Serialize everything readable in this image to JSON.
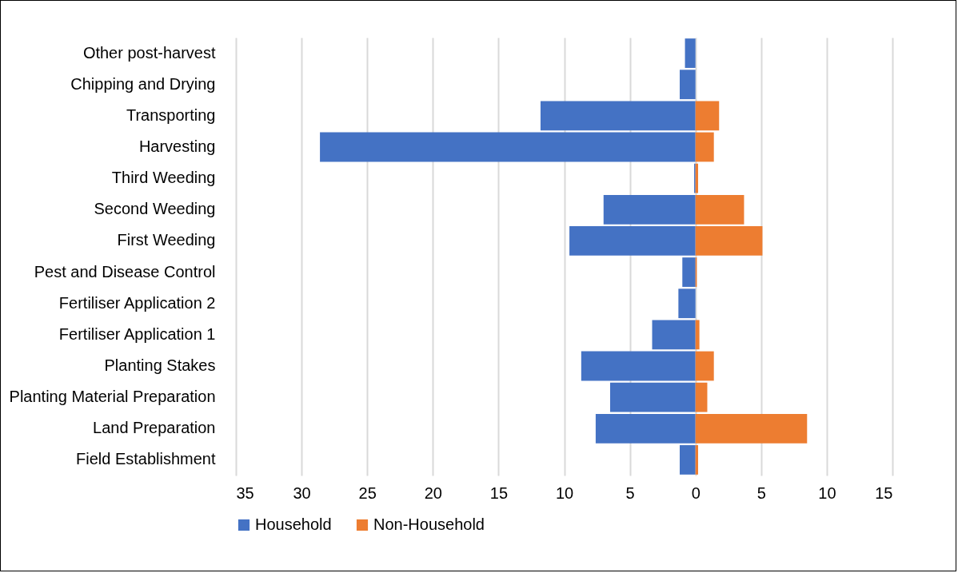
{
  "chart_data": {
    "type": "bar",
    "orientation": "horizontal",
    "categories": [
      "Other post-harvest",
      "Chipping and Drying",
      "Transporting",
      "Harvesting",
      "Third Weeding",
      "Second Weeding",
      "First Weeding",
      "Pest and Disease Control",
      "Fertiliser Application 2",
      "Fertiliser Application 1",
      "Planting Stakes",
      "Planting Material Preparation",
      "Land Preparation",
      "Field Establishment"
    ],
    "series": [
      {
        "name": "Household",
        "color": "#4472c4",
        "values": [
          -0.8,
          -1.2,
          -11.8,
          -28.6,
          -0.1,
          -7.0,
          -9.6,
          -1.0,
          -1.3,
          -3.3,
          -8.7,
          -6.5,
          -7.6,
          -1.2
        ]
      },
      {
        "name": "Non-Household",
        "color": "#ed7d31",
        "values": [
          null,
          null,
          1.8,
          1.4,
          0.2,
          3.7,
          5.1,
          0.1,
          null,
          0.3,
          1.4,
          0.9,
          8.5,
          0.2
        ]
      }
    ],
    "xlim": [
      -35,
      15
    ],
    "xticks": [
      {
        "value": -35,
        "label": "35"
      },
      {
        "value": -30,
        "label": "30"
      },
      {
        "value": -25,
        "label": "25"
      },
      {
        "value": -20,
        "label": "20"
      },
      {
        "value": -15,
        "label": "15"
      },
      {
        "value": -10,
        "label": "10"
      },
      {
        "value": -5,
        "label": "5"
      },
      0,
      5,
      10,
      15
    ],
    "grid": "x",
    "legend": "bottom",
    "stacked": true
  }
}
